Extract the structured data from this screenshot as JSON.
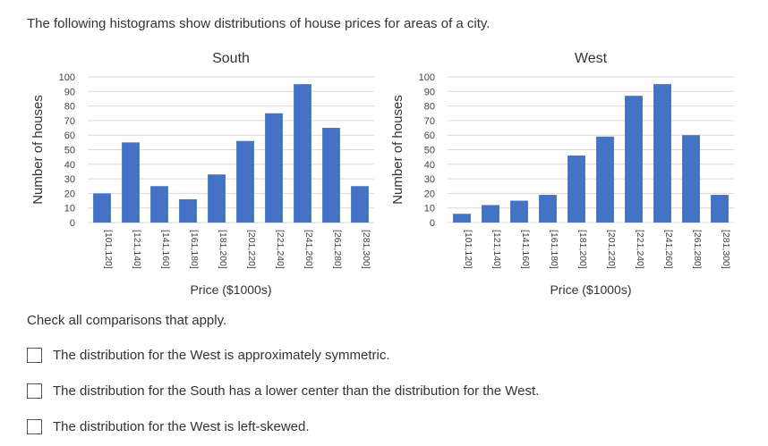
{
  "intro_text": "The following histograms show distributions of house prices for areas of a city.",
  "prompt_text": "Check all comparisons that apply.",
  "options": [
    {
      "label": "The distribution for the West is approximately symmetric.",
      "checked": false
    },
    {
      "label": "The distribution for the South has a lower center than the distribution for the West.",
      "checked": false
    },
    {
      "label": "The distribution for the West is left-skewed.",
      "checked": false
    }
  ],
  "colors": {
    "bar": "#4472C4",
    "grid": "#d9d9d9"
  },
  "chart_data": [
    {
      "type": "bar",
      "title": "South",
      "xlabel": "Price ($1000s)",
      "ylabel": "Number of houses",
      "categories": [
        "[101,120]",
        "[121,140]",
        "[141,160]",
        "[161,180]",
        "[181,200]",
        "[201,220]",
        "[221,240]",
        "[241,260]",
        "[261,280]",
        "[281,300]"
      ],
      "values": [
        20,
        55,
        25,
        16,
        33,
        56,
        75,
        95,
        65,
        25
      ],
      "ylim": [
        0,
        100
      ],
      "yticks": [
        0,
        10,
        20,
        30,
        40,
        50,
        60,
        70,
        80,
        90,
        100
      ],
      "grid": true
    },
    {
      "type": "bar",
      "title": "West",
      "xlabel": "Price ($1000s)",
      "ylabel": "Number of houses",
      "categories": [
        "[101,120]",
        "[121,140]",
        "[141,160]",
        "[161,180]",
        "[181,200]",
        "[201,220]",
        "[221,240]",
        "[241,260]",
        "[261,280]",
        "[281,300]"
      ],
      "values": [
        6,
        12,
        15,
        19,
        46,
        59,
        87,
        95,
        60,
        19
      ],
      "ylim": [
        0,
        100
      ],
      "yticks": [
        0,
        10,
        20,
        30,
        40,
        50,
        60,
        70,
        80,
        90,
        100
      ],
      "grid": true
    }
  ]
}
